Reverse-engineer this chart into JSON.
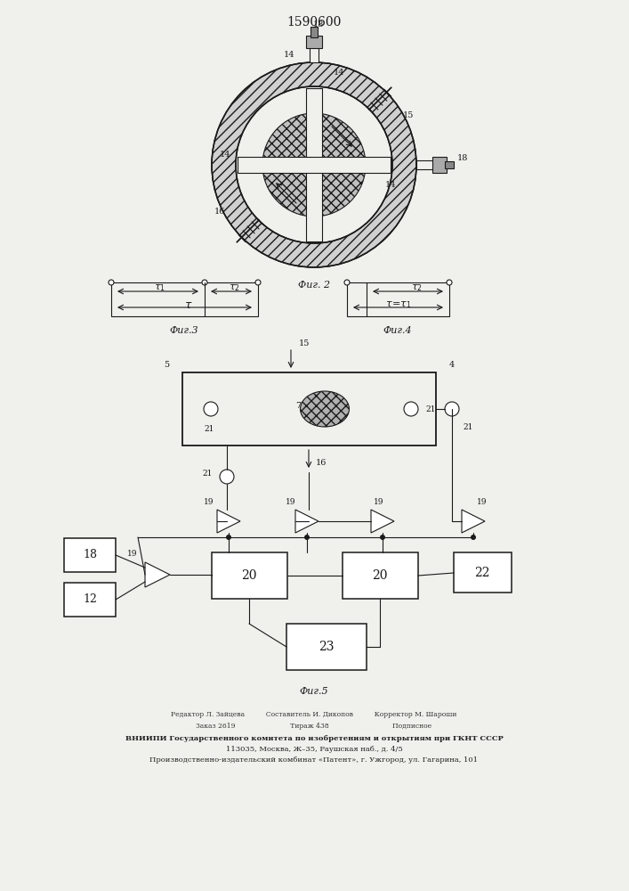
{
  "title": "1590600",
  "bg_color": "#f0f0ec",
  "line_color": "#1a1a1a",
  "fig2_label": "Фиг. 2",
  "fig3_label": "Фиг.3",
  "fig4_label": "Фиг.4",
  "fig5_label": "Фиг.5",
  "footer_lines": [
    "Редактор Л. Зайцева          Составитель И. Дикопов          Корректор М. Шароши",
    "Заказ 2619                          Тираж 438                              Подписное",
    "ВНИИПИ Государственного комитета по изобретениям и открытиям при ГКНТ СССР",
    "113035, Москва, Ж–35, Раушская наб., д. 4/5",
    "Производственно-издательский комбинат «Патент», г. Ужгород, ул. Гагарина, 101"
  ]
}
